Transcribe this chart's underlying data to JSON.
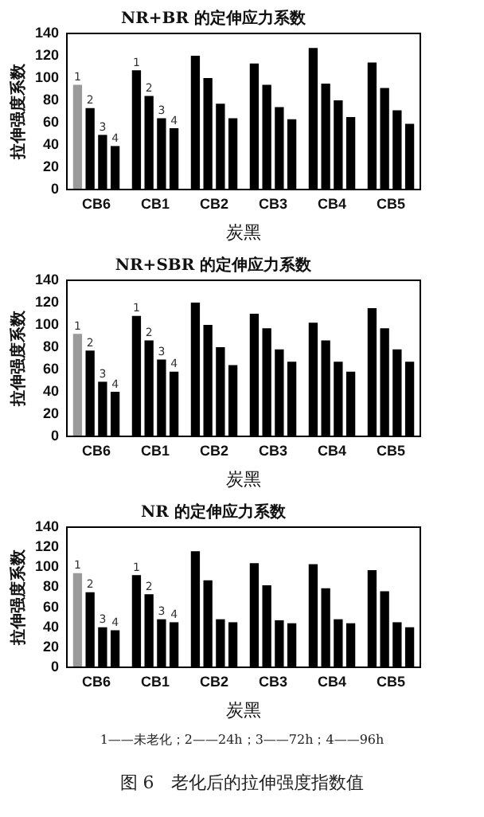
{
  "chart_data": [
    {
      "type": "bar",
      "title": "NR+BR 的定伸应力系数",
      "xlabel": "炭黑",
      "ylabel": "拉伸强度系数",
      "categories": [
        "CB6",
        "CB1",
        "CB2",
        "CB3",
        "CB4",
        "CB5"
      ],
      "series": [
        {
          "name": "1",
          "color": "#000000",
          "colors": [
            "#9a9a9a",
            null,
            null,
            null,
            null,
            null
          ],
          "values": [
            94,
            107,
            120,
            113,
            127,
            114
          ]
        },
        {
          "name": "2",
          "color": "#000000",
          "values": [
            73,
            84,
            100,
            94,
            95,
            91
          ]
        },
        {
          "name": "3",
          "color": "#000000",
          "values": [
            49,
            64,
            77,
            74,
            80,
            71
          ]
        },
        {
          "name": "4",
          "color": "#000000",
          "values": [
            39,
            55,
            64,
            63,
            65,
            59
          ]
        }
      ],
      "ylim": [
        0,
        140
      ],
      "yticks": [
        0,
        20,
        40,
        60,
        80,
        100,
        120,
        140
      ],
      "grid": false,
      "legend": false
    },
    {
      "type": "bar",
      "title": "NR+SBR 的定伸应力系数",
      "xlabel": "炭黑",
      "ylabel": "拉伸强度系数",
      "categories": [
        "CB6",
        "CB1",
        "CB2",
        "CB3",
        "CB4",
        "CB5"
      ],
      "series": [
        {
          "name": "1",
          "color": "#000000",
          "colors": [
            "#9a9a9a",
            null,
            null,
            null,
            null,
            null
          ],
          "values": [
            92,
            108,
            120,
            110,
            102,
            115
          ]
        },
        {
          "name": "2",
          "color": "#000000",
          "values": [
            77,
            86,
            100,
            97,
            86,
            97
          ]
        },
        {
          "name": "3",
          "color": "#000000",
          "values": [
            49,
            69,
            80,
            78,
            67,
            78
          ]
        },
        {
          "name": "4",
          "color": "#000000",
          "values": [
            40,
            58,
            64,
            67,
            58,
            67
          ]
        }
      ],
      "ylim": [
        0,
        140
      ],
      "yticks": [
        0,
        20,
        40,
        60,
        80,
        100,
        120,
        140
      ],
      "grid": false,
      "legend": false
    },
    {
      "type": "bar",
      "title": "NR 的定伸应力系数",
      "xlabel": "炭黑",
      "ylabel": "拉伸强度系数",
      "categories": [
        "CB6",
        "CB1",
        "CB2",
        "CB3",
        "CB4",
        "CB5"
      ],
      "series": [
        {
          "name": "1",
          "color": "#000000",
          "colors": [
            "#9a9a9a",
            null,
            null,
            null,
            null,
            null
          ],
          "values": [
            94,
            92,
            116,
            104,
            103,
            97
          ]
        },
        {
          "name": "2",
          "color": "#000000",
          "values": [
            75,
            73,
            87,
            82,
            79,
            76
          ]
        },
        {
          "name": "3",
          "color": "#000000",
          "values": [
            40,
            48,
            48,
            47,
            48,
            45
          ]
        },
        {
          "name": "4",
          "color": "#000000",
          "values": [
            37,
            45,
            45,
            44,
            44,
            40
          ]
        }
      ],
      "ylim": [
        0,
        140
      ],
      "yticks": [
        0,
        20,
        40,
        60,
        80,
        100,
        120,
        140
      ],
      "grid": false,
      "legend": false,
      "annotations": [
        "1——未老化；2——24h；3——72h；4——96h",
        "图 6　老化后的拉伸强度指数值"
      ]
    }
  ]
}
